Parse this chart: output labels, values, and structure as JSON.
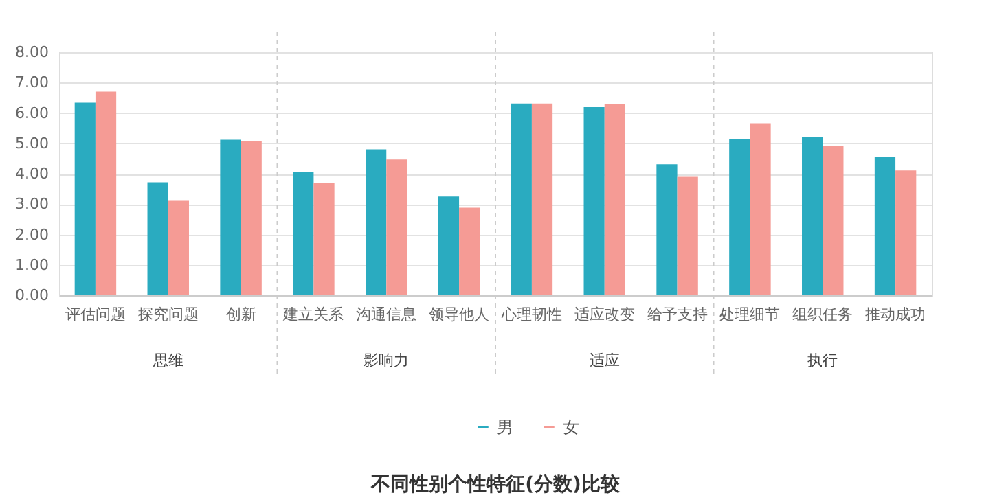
{
  "chart_data": {
    "type": "bar",
    "title": "不同性别个性特征(分数)比较",
    "categories": [
      "评估问题",
      "探究问题",
      "创新",
      "建立关系",
      "沟通信息",
      "领导他人",
      "心理韧性",
      "适应改变",
      "给予支持",
      "处理细节",
      "组织任务",
      "推动成功"
    ],
    "series": [
      {
        "name": "男",
        "color": "#2aabc0",
        "values": [
          6.34,
          3.72,
          5.12,
          4.07,
          4.8,
          3.25,
          6.31,
          6.19,
          4.31,
          5.15,
          5.2,
          4.55
        ]
      },
      {
        "name": "女",
        "color": "#f59b95",
        "values": [
          6.7,
          3.13,
          5.06,
          3.7,
          4.47,
          2.88,
          6.31,
          6.28,
          3.9,
          5.66,
          4.92,
          4.11
        ]
      }
    ],
    "ylim": [
      0,
      8
    ],
    "yticks": [
      {
        "value": 0,
        "label": "0.00"
      },
      {
        "value": 1,
        "label": "1.00"
      },
      {
        "value": 2,
        "label": "2.00"
      },
      {
        "value": 3,
        "label": "3.00"
      },
      {
        "value": 4,
        "label": "4.00"
      },
      {
        "value": 5,
        "label": "5.00"
      },
      {
        "value": 6,
        "label": "6.00"
      },
      {
        "value": 7,
        "label": "7.00"
      },
      {
        "value": 8,
        "label": "8.00"
      }
    ],
    "annotations": [
      "思维",
      "影响力",
      "适应",
      "执行"
    ],
    "grid": "y",
    "legend": "bottom"
  }
}
